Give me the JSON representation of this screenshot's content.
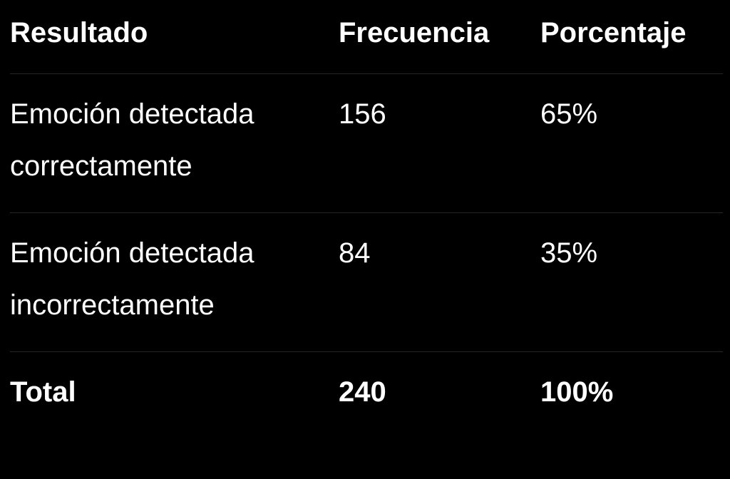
{
  "table": {
    "headers": [
      "Resultado",
      "Frecuencia",
      "Porcentaje"
    ],
    "rows": [
      [
        "Emoción detectada correctamente",
        "156",
        "65%"
      ],
      [
        "Emoción detectada incorrectamente",
        "84",
        "35%"
      ]
    ],
    "total": [
      "Total",
      "240",
      "100%"
    ]
  }
}
